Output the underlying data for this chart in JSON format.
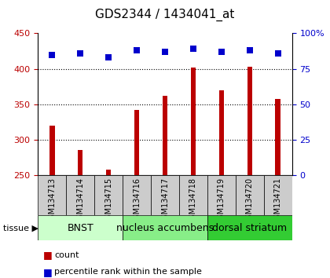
{
  "title": "GDS2344 / 1434041_at",
  "samples": [
    "GSM134713",
    "GSM134714",
    "GSM134715",
    "GSM134716",
    "GSM134717",
    "GSM134718",
    "GSM134719",
    "GSM134720",
    "GSM134721"
  ],
  "counts": [
    320,
    285,
    258,
    342,
    362,
    402,
    370,
    403,
    357
  ],
  "percentiles": [
    85,
    86,
    83,
    88,
    87,
    89,
    87,
    88,
    86
  ],
  "ylim_left": [
    250,
    450
  ],
  "ylim_right": [
    0,
    100
  ],
  "yticks_left": [
    250,
    300,
    350,
    400,
    450
  ],
  "yticks_right": [
    0,
    25,
    50,
    75,
    100
  ],
  "bar_color": "#bb0000",
  "dot_color": "#0000cc",
  "bar_width": 0.18,
  "groups": [
    {
      "label": "BNST",
      "start": 0,
      "end": 3,
      "color": "#ccffcc"
    },
    {
      "label": "nucleus accumbens",
      "start": 3,
      "end": 6,
      "color": "#88ee88"
    },
    {
      "label": "dorsal striatum",
      "start": 6,
      "end": 9,
      "color": "#33cc33"
    }
  ],
  "tissue_label": "tissue",
  "legend_count_label": "count",
  "legend_pct_label": "percentile rank within the sample",
  "background_color": "#ffffff",
  "sample_bg_color": "#cccccc",
  "title_fontsize": 11,
  "tick_fontsize": 8,
  "label_fontsize": 7,
  "group_fontsize": 9,
  "legend_fontsize": 8,
  "grid_yticks": [
    300,
    350,
    400
  ],
  "dot_size": 30
}
